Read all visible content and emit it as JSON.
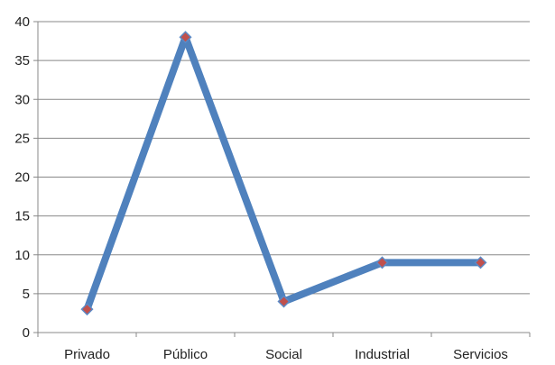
{
  "chart_data": {
    "type": "line",
    "title": "",
    "xlabel": "",
    "ylabel": "",
    "categories": [
      "Privado",
      "Público",
      "Social",
      "Industrial",
      "Servicios"
    ],
    "series": [
      {
        "values": [
          3,
          38,
          4,
          9,
          9
        ],
        "color": "#4F81BD",
        "marker_color": "#C0504D"
      }
    ],
    "ylim": [
      0,
      40
    ],
    "yticks": [
      "0",
      "5",
      "10",
      "15",
      "20",
      "25",
      "30",
      "35",
      "40"
    ],
    "grid": true,
    "legend": "none"
  }
}
